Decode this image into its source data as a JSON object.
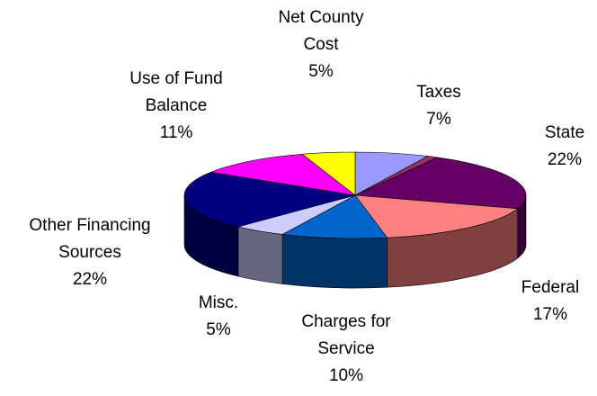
{
  "chart_data": {
    "type": "pie",
    "categories": [
      "Taxes",
      null,
      "State",
      "Federal",
      "Charges for Service",
      "Misc.",
      "Other Financing Sources",
      "Use of Fund Balance",
      "Net County Cost"
    ],
    "values": [
      7,
      1,
      22,
      17,
      10,
      5,
      22,
      11,
      5
    ],
    "value_labels": [
      "7%",
      null,
      "22%",
      "17%",
      "10%",
      "5%",
      "22%",
      "11%",
      "5%"
    ],
    "colors": [
      "#9999ff",
      "#993366",
      "#660066",
      "#ff8080",
      "#0066cc",
      "#ccccff",
      "#000080",
      "#ff00ff",
      "#ffff00"
    ]
  }
}
